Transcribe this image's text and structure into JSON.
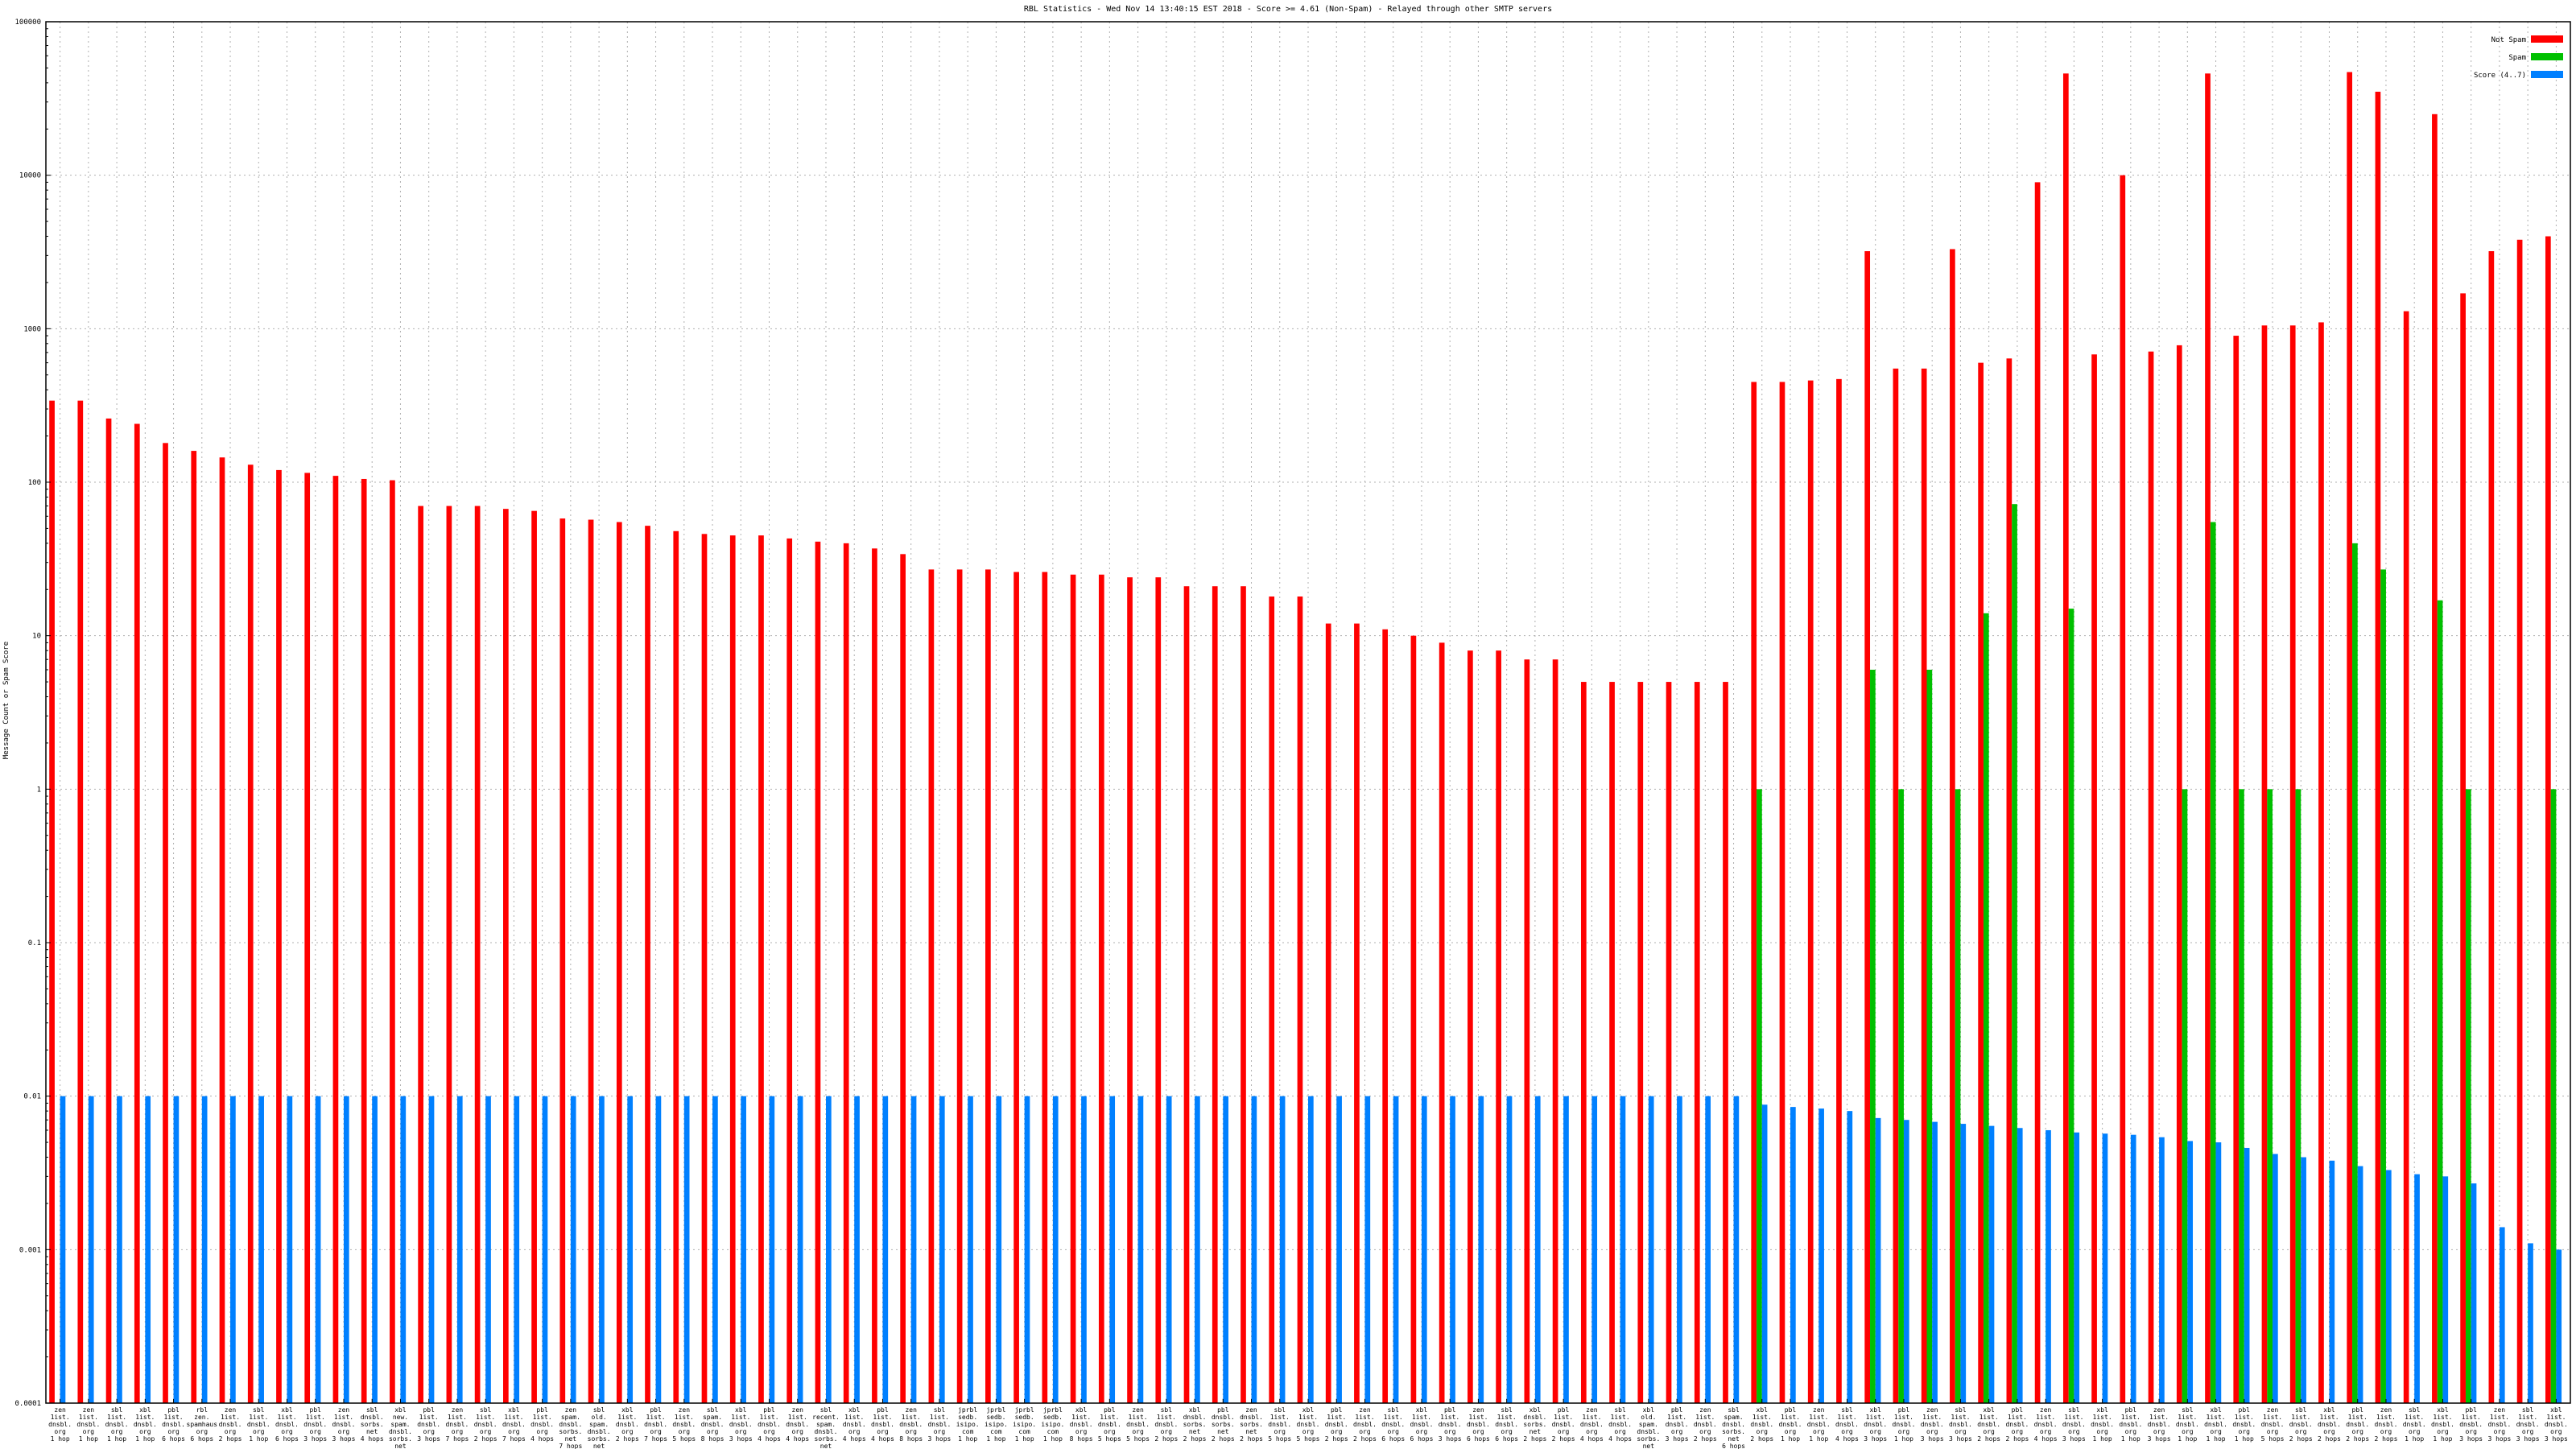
{
  "chart_data": {
    "type": "bar",
    "title": "RBL Statistics - Wed Nov 14 13:40:15 EST 2018 - Score >= 4.61 (Non-Spam) - Relayed through other SMTP servers",
    "ylabel": "Message Count or Spam Score",
    "xlabel": "",
    "yscale": "log",
    "ylim": [
      0.0001,
      100000
    ],
    "yticks": [
      "0.0001",
      "0.001",
      "0.01",
      "0.1",
      "1",
      "10",
      "100",
      "1000",
      "10000",
      "100000"
    ],
    "grid": true,
    "legend_position": "top-right",
    "colors": {
      "not_spam": "#ff0000",
      "spam": "#00c000",
      "score": "#0080ff"
    },
    "categories": [
      "zen\n1ist.\ndnsbl.\norg\n1 hop",
      "zen\n1ist.\ndnsbl.\norg\n1 hop",
      "sbl\n1ist.\ndnsbl.\norg\n1 hop",
      "xbl\n1ist.\ndnsbl.\norg\n1 hop",
      "pbl\n1ist.\ndnsbl.\norg\n6 hops",
      "rbl\nzen.\nspamhaus\norg\n6 hops",
      "zen\n1ist.\ndnsbl.\norg\n2 hops",
      "sbl\n1ist.\ndnsbl.\norg\n1 hop",
      "xbl\n1ist.\ndnsbl.\norg\n6 hops",
      "pbl\n1ist.\ndnsbl.\norg\n3 hops",
      "zen\n1ist.\ndnsbl.\norg\n3 hops",
      "sbl\ndnsbl.\nsorbs.\nnet\n4 hops",
      "xbl\nnew.\nspam.\ndnsbl.\nsorbs.\nnet\n4 hops",
      "pbl\n1ist.\ndnsbl.\norg\n3 hops",
      "zen\n1ist.\ndnsbl.\norg\n7 hops",
      "sbl\n1ist.\ndnsbl.\norg\n2 hops",
      "xbl\n1ist.\ndnsbl.\norg\n7 hops",
      "pbl\n1ist.\ndnsbl.\norg\n4 hops",
      "zen\nspam.\ndnsbl.\nsorbs.\nnet\n7 hops",
      "sbl\nold.\nspam.\ndnsbl.\nsorbs.\nnet\n5 hops",
      "xbl\n1ist.\ndnsbl.\norg\n2 hops",
      "pbl\n1ist.\ndnsbl.\norg\n7 hops",
      "zen\n1ist.\ndnsbl.\norg\n5 hops",
      "sbl\nspam.\ndnsbl.\norg\n8 hops",
      "xbl\n1ist.\ndnsbl.\norg\n3 hops",
      "pbl\n1ist.\ndnsbl.\norg\n4 hops",
      "zen\n1ist.\ndnsbl.\norg\n4 hops",
      "sbl\nrecent.\nspam.\ndnsbl.\nsorbs.\nnet\n7 hops",
      "xbl\n1ist.\ndnsbl.\norg\n4 hops",
      "pbl\n1ist.\ndnsbl.\norg\n4 hops",
      "zen\n1ist.\ndnsbl.\norg\n8 hops",
      "sbl\n1ist.\ndnsbl.\norg\n3 hops",
      "jprbl\nsedb.\nisipo.\ncom\n1 hop",
      "jprbl\nsedb.\nisipo.\ncom\n1 hop",
      "jprbl\nsedb.\nisipo.\ncom\n1 hop",
      "jprbl\nsedb.\nisipo.\ncom\n1 hop",
      "xbl\n1ist.\ndnsbl.\norg\n8 hops",
      "pbl\n1ist.\ndnsbl.\norg\n5 hops",
      "zen\n1ist.\ndnsbl.\norg\n5 hops",
      "sbl\n1ist.\ndnsbl.\norg\n2 hops",
      "xbl\ndnsbl.\nsorbs.\nnet\n2 hops",
      "pbl\ndnsbl.\nsorbs.\nnet\n2 hops",
      "zen\ndnsbl.\nsorbs.\nnet\n2 hops",
      "sbl\n1ist.\ndnsbl.\norg\n5 hops",
      "xbl\n1ist.\ndnsbl.\norg\n5 hops",
      "pbl\n1ist.\ndnsbl.\norg\n2 hops",
      "zen\n1ist.\ndnsbl.\norg\n2 hops",
      "sbl\n1ist.\ndnsbl.\norg\n6 hops",
      "xbl\n1ist.\ndnsbl.\norg\n6 hops",
      "pbl\n1ist.\ndnsbl.\norg\n3 hops",
      "zen\n1ist.\ndnsbl.\norg\n6 hops",
      "sbl\n1ist.\ndnsbl.\norg\n6 hops",
      "xbl\ndnsbl.\nsorbs.\nnet\n2 hops",
      "pbl\n1ist.\ndnsbl.\norg\n2 hops",
      "zen\n1ist.\ndnsbl.\norg\n4 hops",
      "sbl\n1ist.\ndnsbl.\norg\n4 hops",
      "xbl\nold.\nspam.\ndnsbl.\nsorbs.\nnet\n6 hops",
      "pbl\n1ist.\ndnsbl.\norg\n3 hops",
      "zen\n1ist.\ndnsbl.\norg\n2 hops",
      "sbl\nspam.\ndnsbl.\nsorbs.\nnet\n6 hops",
      "xbl\n1ist.\ndnsbl.\norg\n2 hops",
      "pbl\n1ist.\ndnsbl.\norg\n1 hop",
      "zen\n1ist.\ndnsbl.\norg\n1 hop",
      "sbl\n1ist.\ndnsbl.\norg\n4 hops",
      "xbl\n1ist.\ndnsbl.\norg\n3 hops",
      "pbl\n1ist.\ndnsbl.\norg\n1 hop",
      "zen\n1ist.\ndnsbl.\norg\n3 hops",
      "sbl\n1ist.\ndnsbl.\norg\n3 hops",
      "xbl\n1ist.\ndnsbl.\norg\n2 hops",
      "pbl\n1ist.\ndnsbl.\norg\n2 hops",
      "zen\n1ist.\ndnsbl.\norg\n4 hops",
      "sbl\n1ist.\ndnsbl.\norg\n3 hops",
      "xbl\n1ist.\ndnsbl.\norg\n1 hop",
      "pbl\n1ist.\ndnsbl.\norg\n1 hop",
      "zen\n1ist.\ndnsbl.\norg\n3 hops",
      "sbl\n1ist.\ndnsbl.\norg\n1 hop",
      "xbl\n1ist.\ndnsbl.\norg\n1 hop",
      "pbl\n1ist.\ndnsbl.\norg\n1 hop",
      "zen\n1ist.\ndnsbl.\norg\n5 hops",
      "sbl\n1ist.\ndnsbl.\norg\n2 hops",
      "xbl\n1ist.\ndnsbl.\norg\n2 hops",
      "pbl\n1ist.\ndnsbl.\norg\n2 hops",
      "zen\n1ist.\ndnsbl.\norg\n2 hops",
      "sbl\n1ist.\ndnsbl.\norg\n1 hop",
      "xbl\n1ist.\ndnsbl.\norg\n1 hop",
      "pbl\n1ist.\ndnsbl.\norg\n3 hops",
      "zen\n1ist.\ndnsbl.\norg\n3 hops",
      "sbl\n1ist.\ndnsbl.\norg\n3 hops",
      "xbl\n1ist.\ndnsbl.\norg\n3 hops"
    ],
    "series": [
      {
        "name": "Not Spam",
        "color": "#ff0000",
        "values": [
          340,
          340,
          260,
          240,
          180,
          160,
          145,
          130,
          120,
          115,
          110,
          105,
          103,
          70,
          70,
          70,
          67,
          65,
          58,
          57,
          55,
          52,
          48,
          46,
          45,
          45,
          43,
          41,
          40,
          37,
          34,
          27,
          27,
          27,
          26,
          26,
          25,
          25,
          24,
          24,
          21,
          21,
          21,
          18,
          18,
          12,
          12,
          11,
          10,
          9,
          8,
          8,
          7,
          7,
          5,
          5,
          5,
          5,
          5,
          5,
          450,
          450,
          460,
          470,
          3200,
          550,
          550,
          3300,
          600,
          640,
          9000,
          46000,
          680,
          10000,
          710,
          780,
          46000,
          900,
          1050,
          1050,
          1100,
          47000,
          35000,
          1300,
          25000,
          1700,
          3200,
          3800,
          4000
        ]
      },
      {
        "name": "Spam",
        "color": "#00c000",
        "values": [
          0,
          0,
          0,
          0,
          0,
          0,
          0,
          0,
          0,
          0,
          0,
          0,
          0,
          0,
          0,
          0,
          0,
          0,
          0,
          0,
          0,
          0,
          0,
          0,
          0,
          0,
          0,
          0,
          0,
          0,
          0,
          0,
          0,
          0,
          0,
          0,
          0,
          0,
          0,
          0,
          0,
          0,
          0,
          0,
          0,
          0,
          0,
          0,
          0,
          0,
          0,
          0,
          0,
          0,
          0,
          0,
          0,
          0,
          0,
          0,
          1,
          0,
          0,
          0,
          6,
          1,
          6,
          1,
          14,
          72,
          0,
          15,
          0,
          0,
          0,
          1,
          55,
          1,
          1,
          1,
          0,
          40,
          27,
          0,
          17,
          1,
          0,
          0,
          1
        ]
      },
      {
        "name": "Score (4..7)",
        "color": "#0080ff",
        "values": [
          0.01,
          0.01,
          0.01,
          0.01,
          0.01,
          0.01,
          0.01,
          0.01,
          0.01,
          0.01,
          0.01,
          0.01,
          0.01,
          0.01,
          0.01,
          0.01,
          0.01,
          0.01,
          0.01,
          0.01,
          0.01,
          0.01,
          0.01,
          0.01,
          0.01,
          0.01,
          0.01,
          0.01,
          0.01,
          0.01,
          0.01,
          0.01,
          0.01,
          0.01,
          0.01,
          0.01,
          0.01,
          0.01,
          0.01,
          0.01,
          0.01,
          0.01,
          0.01,
          0.01,
          0.01,
          0.01,
          0.01,
          0.01,
          0.01,
          0.01,
          0.01,
          0.01,
          0.01,
          0.01,
          0.01,
          0.01,
          0.01,
          0.01,
          0.01,
          0.01,
          0.0088,
          0.0085,
          0.0083,
          0.008,
          0.0072,
          0.007,
          0.0068,
          0.0066,
          0.0064,
          0.0062,
          0.006,
          0.0058,
          0.0057,
          0.0056,
          0.0054,
          0.0051,
          0.005,
          0.0046,
          0.0042,
          0.004,
          0.0038,
          0.0035,
          0.0033,
          0.0031,
          0.003,
          0.0027,
          0.0014,
          0.0011,
          0.001
        ]
      }
    ]
  }
}
